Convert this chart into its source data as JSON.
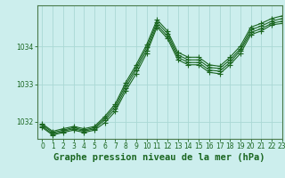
{
  "title": "Graphe pression niveau de la mer (hPa)",
  "bg_color": "#cceeed",
  "grid_color": "#aad8d5",
  "line_color": "#1a6620",
  "ylim": [
    1031.55,
    1035.1
  ],
  "xlim": [
    -0.5,
    23
  ],
  "yticks": [
    1032,
    1033,
    1034
  ],
  "xticks": [
    0,
    1,
    2,
    3,
    4,
    5,
    6,
    7,
    8,
    9,
    10,
    11,
    12,
    13,
    14,
    15,
    16,
    17,
    18,
    19,
    20,
    21,
    22,
    23
  ],
  "series": [
    [
      1031.85,
      1031.65,
      1031.72,
      1031.78,
      1031.72,
      1031.78,
      1031.98,
      1032.28,
      1032.82,
      1033.28,
      1033.82,
      1034.52,
      1034.22,
      1033.65,
      1033.52,
      1033.52,
      1033.32,
      1033.28,
      1033.52,
      1033.82,
      1034.32,
      1034.42,
      1034.58,
      1034.62
    ],
    [
      1031.88,
      1031.68,
      1031.75,
      1031.82,
      1031.75,
      1031.82,
      1032.05,
      1032.35,
      1032.9,
      1033.38,
      1033.9,
      1034.58,
      1034.28,
      1033.72,
      1033.58,
      1033.58,
      1033.38,
      1033.35,
      1033.58,
      1033.9,
      1034.38,
      1034.48,
      1034.62,
      1034.68
    ],
    [
      1031.92,
      1031.72,
      1031.78,
      1031.85,
      1031.78,
      1031.85,
      1032.1,
      1032.42,
      1032.98,
      1033.45,
      1033.98,
      1034.65,
      1034.35,
      1033.78,
      1033.65,
      1033.65,
      1033.45,
      1033.42,
      1033.65,
      1033.95,
      1034.45,
      1034.55,
      1034.68,
      1034.75
    ],
    [
      1031.95,
      1031.75,
      1031.82,
      1031.88,
      1031.82,
      1031.88,
      1032.15,
      1032.48,
      1033.05,
      1033.52,
      1034.05,
      1034.72,
      1034.42,
      1033.85,
      1033.72,
      1033.72,
      1033.52,
      1033.48,
      1033.72,
      1034.02,
      1034.52,
      1034.62,
      1034.75,
      1034.82
    ]
  ],
  "marker": "+",
  "markersize": 4,
  "linewidth": 0.8,
  "title_fontsize": 7.5,
  "tick_fontsize": 5.5
}
